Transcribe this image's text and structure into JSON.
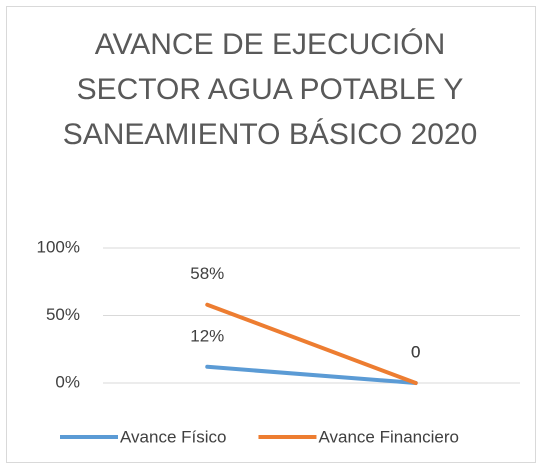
{
  "chart_data": {
    "type": "line",
    "title": "AVANCE DE EJECUCIÓN SECTOR AGUA POTABLE Y SANEAMIENTO BÁSICO 2020",
    "categories": [
      null,
      null
    ],
    "series": [
      {
        "name": "Avance Físico",
        "color": "#5b9bd5",
        "values": [
          12,
          0
        ],
        "value_labels": [
          "12%",
          "0"
        ]
      },
      {
        "name": "Avance Financiero",
        "color": "#ed7d31",
        "values": [
          58,
          0
        ],
        "value_labels": [
          "58%",
          "0"
        ]
      }
    ],
    "ylim": [
      0,
      100
    ],
    "yticks": [
      {
        "value": 0,
        "label": "0%"
      },
      {
        "value": 50,
        "label": "50%"
      },
      {
        "value": 100,
        "label": "100%"
      }
    ],
    "grid": true,
    "legend": "bottom"
  }
}
